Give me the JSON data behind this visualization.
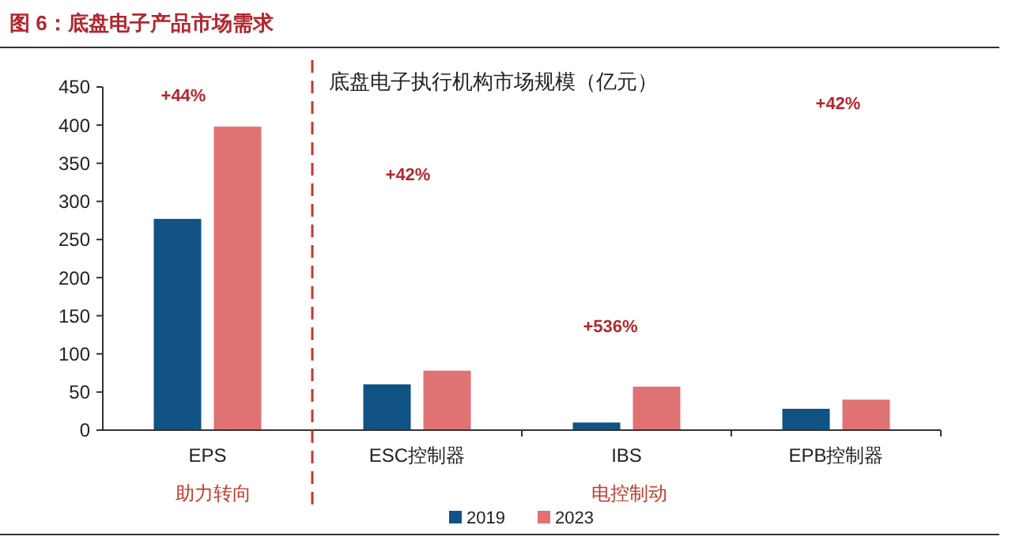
{
  "chart_data": {
    "type": "bar",
    "title": "图 6：底盘电子产品市场需求",
    "subtitle": "底盘电子执行机构市场规模（亿元）",
    "categories": [
      "EPS",
      "ESC控制器",
      "IBS",
      "EPB控制器"
    ],
    "series": [
      {
        "name": "2019",
        "color": "#0f5283",
        "values": [
          277,
          60,
          10,
          28
        ]
      },
      {
        "name": "2023",
        "color": "#e07274",
        "values": [
          398,
          78,
          57,
          40
        ]
      }
    ],
    "ylim": [
      0,
      450
    ],
    "yticks": [
      0,
      50,
      100,
      150,
      200,
      250,
      300,
      350,
      400,
      450
    ],
    "grid": false,
    "legend": "bottom",
    "annotations": [
      "+44%",
      "+42%",
      "+536%",
      "+42%",
      "助力转向",
      "电控制动"
    ]
  }
}
